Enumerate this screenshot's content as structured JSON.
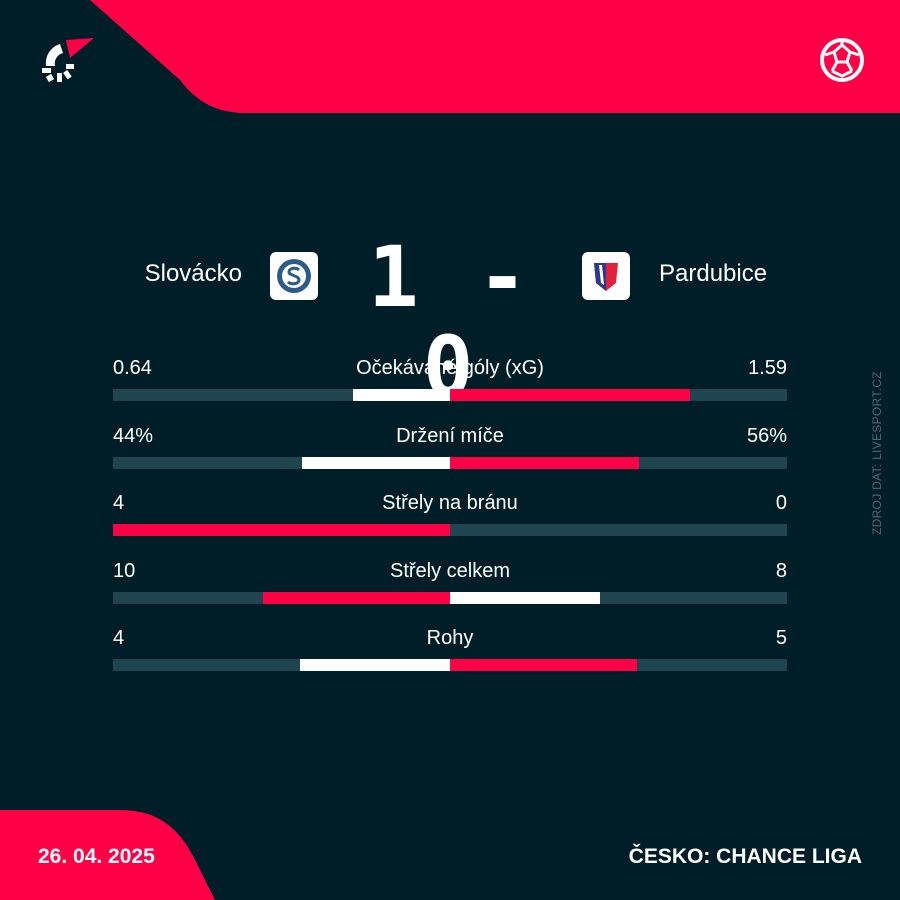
{
  "colors": {
    "background": "#001e28",
    "accent": "#ff0046",
    "track": "#1f4650",
    "loser": "#ffffff"
  },
  "header": {
    "logo_icon": "livesport-logo",
    "sport_icon": "football-icon"
  },
  "match": {
    "home": "Slovácko",
    "away": "Pardubice",
    "home_score": "1",
    "away_score": "0",
    "separator": "-"
  },
  "stats": [
    {
      "name": "Očekávané góly (xG)",
      "home": "0.64",
      "away": "1.59",
      "home_value": 0.64,
      "away_value": 1.59
    },
    {
      "name": "Držení míče",
      "home": "44%",
      "away": "56%",
      "home_value": 44,
      "away_value": 56
    },
    {
      "name": "Střely na bránu",
      "home": "4",
      "away": "0",
      "home_value": 4,
      "away_value": 0
    },
    {
      "name": "Střely celkem",
      "home": "10",
      "away": "8",
      "home_value": 10,
      "away_value": 8
    },
    {
      "name": "Rohy",
      "home": "4",
      "away": "5",
      "home_value": 4,
      "away_value": 5
    }
  ],
  "source": "ZDROJ DAT: LIVESPORT.CZ",
  "footer": {
    "date": "26. 04. 2025",
    "league": "ČESKO: CHANCE LIGA"
  }
}
